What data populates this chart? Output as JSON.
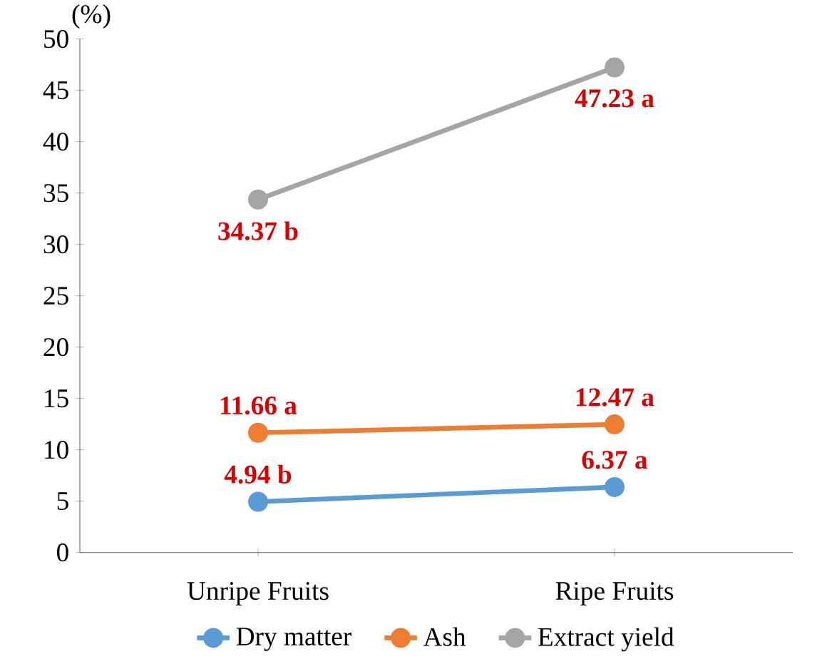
{
  "chart_data": {
    "type": "line",
    "ylabel": "(%)",
    "categories": [
      "Unripe Fruits",
      "Ripe Fruits"
    ],
    "series": [
      {
        "name": "Dry matter",
        "color": "#5b9bd5",
        "values": [
          4.94,
          6.37
        ],
        "value_labels": [
          "4.94 b",
          "6.37 a"
        ]
      },
      {
        "name": "Ash",
        "color": "#ed7d31",
        "values": [
          11.66,
          12.47
        ],
        "value_labels": [
          "11.66 a",
          "12.47 a"
        ]
      },
      {
        "name": "Extract yield",
        "color": "#a5a5a5",
        "values": [
          34.37,
          47.23
        ],
        "value_labels": [
          "34.37 b",
          "47.23 a"
        ]
      }
    ],
    "ylim": [
      0,
      50
    ],
    "yticks": [
      0,
      5,
      10,
      15,
      20,
      25,
      30,
      35,
      40,
      45,
      50
    ],
    "grid": false,
    "legend": "bottom",
    "marker": "circle",
    "line_style": "solid"
  }
}
